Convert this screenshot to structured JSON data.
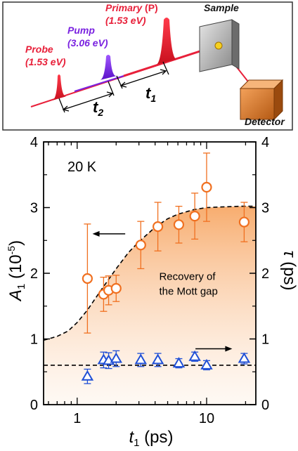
{
  "schematic": {
    "probe_label": "Probe",
    "probe_energy": "(1.53 eV)",
    "pump_label": "Pump",
    "pump_energy": "(3.06 eV)",
    "primary_label": "Primary",
    "primary_tag": "(P)",
    "primary_energy": "(1.53 eV)",
    "sample_label": "Sample",
    "detector_label": "Detector",
    "t1_label": "t",
    "t1_sub": "1",
    "t2_label": "t",
    "t2_sub": "2",
    "colors": {
      "probe": "#e8203a",
      "pump": "#7a22e0",
      "primary": "#e8203a",
      "detector": "#d9772b"
    }
  },
  "chart_data": {
    "type": "scatter",
    "annotation_temp": "20 K",
    "annotation_text": [
      "Recovery of",
      "the Mott gap"
    ],
    "xlabel": "t",
    "xlabel_sub": "1",
    "xlabel_unit": " (ps)",
    "ylabel_left": "A",
    "ylabel_left_sub": "1",
    "ylabel_left_unit": " (10",
    "ylabel_left_exp": "-5",
    "ylabel_left_close": ")",
    "ylabel_right": "τ",
    "ylabel_right_unit": " (ps)",
    "xscale": "log",
    "xlim": [
      0.55,
      24
    ],
    "ylim": [
      0,
      4
    ],
    "x_tick_labels": [
      {
        "value": 1,
        "label": "1"
      },
      {
        "value": 10,
        "label": "10"
      }
    ],
    "y_ticks": [
      0,
      1,
      2,
      3,
      4
    ],
    "series": [
      {
        "axis": "left",
        "marker": "circle",
        "color": "#f07020",
        "x": [
          1.2,
          1.6,
          1.75,
          2.0,
          3.1,
          4.2,
          6.1,
          8.1,
          10.0,
          19.5
        ],
        "y": [
          1.92,
          1.68,
          1.74,
          1.77,
          2.43,
          2.71,
          2.74,
          2.87,
          3.31,
          2.78
        ],
        "err": [
          0.83,
          0.26,
          0.22,
          0.2,
          0.36,
          0.37,
          0.28,
          0.35,
          0.52,
          0.3
        ]
      },
      {
        "axis": "right",
        "marker": "triangle",
        "color": "#1f4fd6",
        "x": [
          1.2,
          1.6,
          1.75,
          2.0,
          3.1,
          4.2,
          6.1,
          8.1,
          10.0,
          19.5
        ],
        "y": [
          0.43,
          0.68,
          0.67,
          0.7,
          0.68,
          0.68,
          0.63,
          0.73,
          0.6,
          0.7
        ],
        "err": [
          0.11,
          0.12,
          0.12,
          0.12,
          0.1,
          0.1,
          0.07,
          0.07,
          0.07,
          0.08
        ]
      }
    ],
    "fit_curve_left": {
      "x": [
        0.55,
        0.7,
        0.85,
        1.0,
        1.2,
        1.5,
        2.0,
        2.5,
        3.0,
        4.0,
        5.0,
        6.0,
        8.0,
        10.0,
        13.0,
        18.0,
        24.0
      ],
      "y": [
        0.98,
        1.04,
        1.12,
        1.25,
        1.44,
        1.72,
        2.07,
        2.32,
        2.48,
        2.7,
        2.83,
        2.9,
        2.97,
        3.0,
        3.01,
        3.02,
        3.02
      ]
    },
    "fit_line_right": 0.6,
    "arrow_left_direction": "left",
    "arrow_right_direction": "right"
  }
}
